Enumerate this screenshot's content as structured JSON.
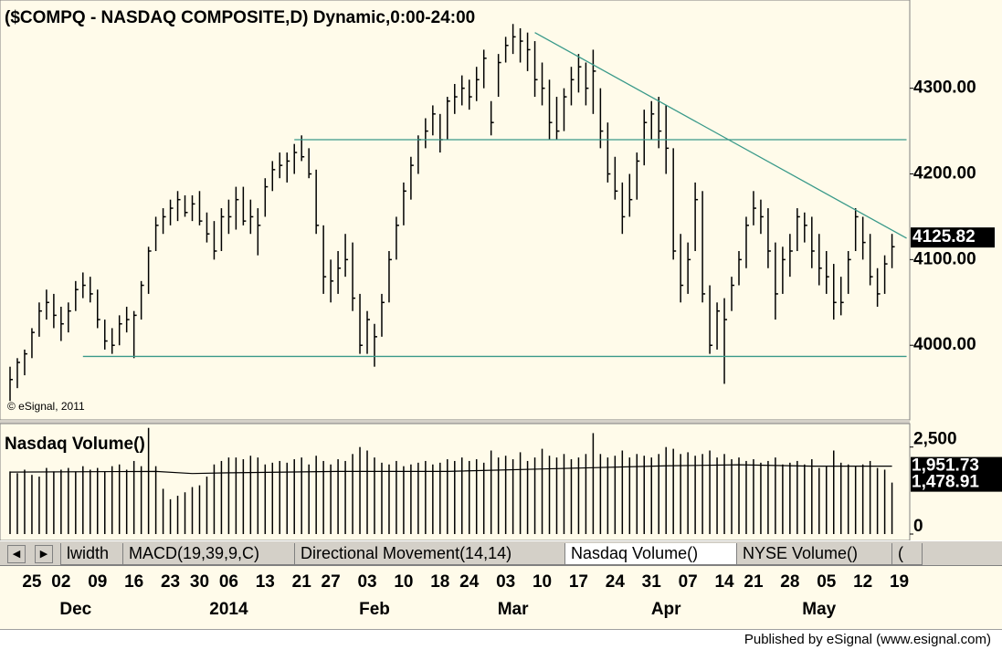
{
  "chart_data": {
    "type": "ohlc",
    "title": "($COMPQ - NASDAQ COMPOSITE,D) Dynamic,0:00-24:00",
    "copyright": "© eSignal, 2011",
    "bar_color": "#000000",
    "line_color": "#3a9a8a",
    "ylim": [
      3915,
      4403
    ],
    "yticks": [
      {
        "value": 4000,
        "label": "4000.00"
      },
      {
        "value": 4100,
        "label": "4100.00"
      },
      {
        "value": 4200,
        "label": "4200.00"
      },
      {
        "value": 4300,
        "label": "4300.00"
      }
    ],
    "last_value": 4125.82,
    "xticks": [
      {
        "value": 3,
        "label": "25"
      },
      {
        "value": 7,
        "label": "02"
      },
      {
        "value": 12,
        "label": "09"
      },
      {
        "value": 17,
        "label": "16"
      },
      {
        "value": 22,
        "label": "23"
      },
      {
        "value": 26,
        "label": "30"
      },
      {
        "value": 30,
        "label": "06"
      },
      {
        "value": 35,
        "label": "13"
      },
      {
        "value": 40,
        "label": "21"
      },
      {
        "value": 44,
        "label": "27"
      },
      {
        "value": 49,
        "label": "03"
      },
      {
        "value": 54,
        "label": "10"
      },
      {
        "value": 59,
        "label": "18"
      },
      {
        "value": 63,
        "label": "24"
      },
      {
        "value": 68,
        "label": "03"
      },
      {
        "value": 73,
        "label": "10"
      },
      {
        "value": 78,
        "label": "17"
      },
      {
        "value": 83,
        "label": "24"
      },
      {
        "value": 88,
        "label": "31"
      },
      {
        "value": 93,
        "label": "07"
      },
      {
        "value": 98,
        "label": "14"
      },
      {
        "value": 102,
        "label": "21"
      },
      {
        "value": 107,
        "label": "28"
      },
      {
        "value": 112,
        "label": "05"
      },
      {
        "value": 117,
        "label": "12"
      },
      {
        "value": 122,
        "label": "19"
      }
    ],
    "month_labels": [
      {
        "value": 9,
        "label": "Dec"
      },
      {
        "value": 30,
        "label": "2014"
      },
      {
        "value": 50,
        "label": "Feb"
      },
      {
        "value": 69,
        "label": "Mar"
      },
      {
        "value": 90,
        "label": "Apr"
      },
      {
        "value": 111,
        "label": "May"
      }
    ],
    "bars": {
      "high": [
        3975,
        3985,
        3995,
        4020,
        4050,
        4065,
        4060,
        4045,
        4050,
        4075,
        4085,
        4080,
        4065,
        4030,
        4020,
        4035,
        4045,
        4040,
        4075,
        4115,
        4150,
        4160,
        4170,
        4180,
        4175,
        4175,
        4180,
        4155,
        4145,
        4160,
        4170,
        4185,
        4185,
        4170,
        4160,
        4195,
        4215,
        4225,
        4225,
        4235,
        4245,
        4230,
        4205,
        4140,
        4100,
        4110,
        4130,
        4120,
        4060,
        4040,
        4025,
        4060,
        4110,
        4150,
        4190,
        4220,
        4245,
        4265,
        4280,
        4270,
        4290,
        4305,
        4315,
        4310,
        4325,
        4345,
        4285,
        4340,
        4360,
        4375,
        4370,
        4365,
        4355,
        4330,
        4310,
        4290,
        4300,
        4325,
        4340,
        4330,
        4345,
        4300,
        4260,
        4220,
        4190,
        4200,
        4225,
        4275,
        4285,
        4290,
        4280,
        4230,
        4130,
        4120,
        4190,
        4180,
        4070,
        4050,
        4055,
        4080,
        4110,
        4150,
        4180,
        4170,
        4160,
        4120,
        4115,
        4130,
        4160,
        4155,
        4150,
        4130,
        4110,
        4095,
        4080,
        4110,
        4160,
        4150,
        4130,
        4090,
        4105,
        4130
      ],
      "low": [
        3935,
        3950,
        3965,
        3985,
        4010,
        4030,
        4020,
        4005,
        4015,
        4040,
        4055,
        4050,
        4020,
        3995,
        3990,
        4000,
        4015,
        3985,
        4030,
        4060,
        4110,
        4130,
        4140,
        4145,
        4150,
        4145,
        4140,
        4120,
        4100,
        4110,
        4130,
        4135,
        4140,
        4130,
        4105,
        4150,
        4180,
        4195,
        4190,
        4200,
        4215,
        4195,
        4130,
        4060,
        4050,
        4060,
        4080,
        4040,
        3990,
        3990,
        3975,
        4010,
        4050,
        4100,
        4140,
        4170,
        4200,
        4230,
        4245,
        4225,
        4240,
        4270,
        4280,
        4275,
        4285,
        4300,
        4245,
        4290,
        4330,
        4340,
        4330,
        4320,
        4290,
        4280,
        4240,
        4240,
        4250,
        4280,
        4295,
        4280,
        4270,
        4230,
        4190,
        4170,
        4130,
        4150,
        4170,
        4210,
        4240,
        4230,
        4200,
        4100,
        4050,
        4060,
        4110,
        4050,
        3990,
        3995,
        3955,
        4040,
        4070,
        4090,
        4140,
        4130,
        4090,
        4030,
        4060,
        4080,
        4110,
        4120,
        4090,
        4070,
        4060,
        4030,
        4035,
        4060,
        4110,
        4100,
        4070,
        4045,
        4060,
        4090
      ],
      "close": [
        3960,
        3980,
        3990,
        4015,
        4040,
        4050,
        4035,
        4025,
        4040,
        4065,
        4070,
        4060,
        4030,
        4005,
        4000,
        4025,
        4030,
        4035,
        4070,
        4110,
        4140,
        4150,
        4160,
        4170,
        4155,
        4165,
        4145,
        4130,
        4110,
        4150,
        4150,
        4170,
        4145,
        4150,
        4140,
        4185,
        4205,
        4210,
        4215,
        4225,
        4220,
        4200,
        4140,
        4080,
        4075,
        4090,
        4100,
        4055,
        4000,
        4030,
        4010,
        4050,
        4100,
        4140,
        4180,
        4210,
        4240,
        4250,
        4270,
        4240,
        4285,
        4290,
        4300,
        4290,
        4310,
        4335,
        4260,
        4330,
        4350,
        4360,
        4355,
        4345,
        4310,
        4300,
        4260,
        4250,
        4290,
        4310,
        4325,
        4300,
        4320,
        4250,
        4200,
        4180,
        4150,
        4170,
        4215,
        4260,
        4270,
        4250,
        4230,
        4110,
        4070,
        4100,
        4170,
        4060,
        4000,
        4040,
        4030,
        4070,
        4100,
        4140,
        4160,
        4150,
        4110,
        4060,
        4100,
        4110,
        4150,
        4140,
        4110,
        4090,
        4080,
        4050,
        4050,
        4100,
        4150,
        4120,
        4080,
        4060,
        4095,
        4115
      ]
    },
    "trend_lines": [
      {
        "x": [
          39,
          123
        ],
        "y": [
          4240,
          4240
        ]
      },
      {
        "x": [
          10,
          123
        ],
        "y": [
          3987,
          3987
        ]
      },
      {
        "x": [
          72,
          123
        ],
        "y": [
          4365,
          4125
        ]
      }
    ],
    "volume": {
      "title": "Nasdaq Volume()",
      "ylim": [
        0,
        3200
      ],
      "yticks": [
        {
          "value": 0,
          "label": "0"
        },
        {
          "value": 2500,
          "label": "2,500"
        }
      ],
      "values": [
        1800,
        1750,
        1850,
        1700,
        1650,
        1900,
        1800,
        1850,
        1900,
        1800,
        1950,
        1850,
        1900,
        1800,
        1950,
        2000,
        1850,
        2100,
        1950,
        3050,
        1950,
        1300,
        1000,
        1100,
        1200,
        1350,
        1400,
        1650,
        2000,
        2100,
        2200,
        2200,
        2150,
        2250,
        2200,
        2000,
        2050,
        2100,
        2050,
        2150,
        2200,
        2000,
        2250,
        2100,
        2000,
        2150,
        2100,
        2300,
        2500,
        2400,
        2200,
        2050,
        2000,
        2100,
        1950,
        2000,
        2050,
        2100,
        2000,
        2050,
        2150,
        2100,
        2200,
        2100,
        2150,
        2050,
        2400,
        2200,
        2250,
        2150,
        2350,
        2100,
        2200,
        2450,
        2250,
        2200,
        2300,
        2150,
        2200,
        2300,
        2900,
        2300,
        2200,
        2250,
        2400,
        2200,
        2300,
        2250,
        2200,
        2300,
        2500,
        2450,
        2300,
        2350,
        2250,
        2300,
        2400,
        2200,
        2300,
        2150,
        2200,
        2100,
        2150,
        2050,
        2100,
        2200,
        2000,
        2050,
        2100,
        2000,
        2150,
        1900,
        1950,
        2400,
        2050,
        2000,
        1950,
        2000,
        2100,
        1900,
        1850,
        1478.91
      ],
      "ma": {
        "x": [
          0,
          20,
          25,
          30,
          45,
          60,
          75,
          90,
          100,
          110,
          121
        ],
        "values": [
          1780,
          1800,
          1740,
          1760,
          1800,
          1800,
          1880,
          1960,
          1990,
          1950,
          1951.73
        ]
      },
      "readouts": [
        {
          "value": 1951.73,
          "label": "1,951.73"
        },
        {
          "value": 1478.91,
          "label": "1,478.91"
        }
      ]
    },
    "tabs": [
      "lwidth",
      "MACD(19,39,9,C)",
      "Directional Movement(14,14)",
      "Nasdaq Volume()",
      "NYSE Volume()",
      "("
    ],
    "active_tab": 3,
    "footer": "Published by eSignal (www.esignal.com)"
  }
}
